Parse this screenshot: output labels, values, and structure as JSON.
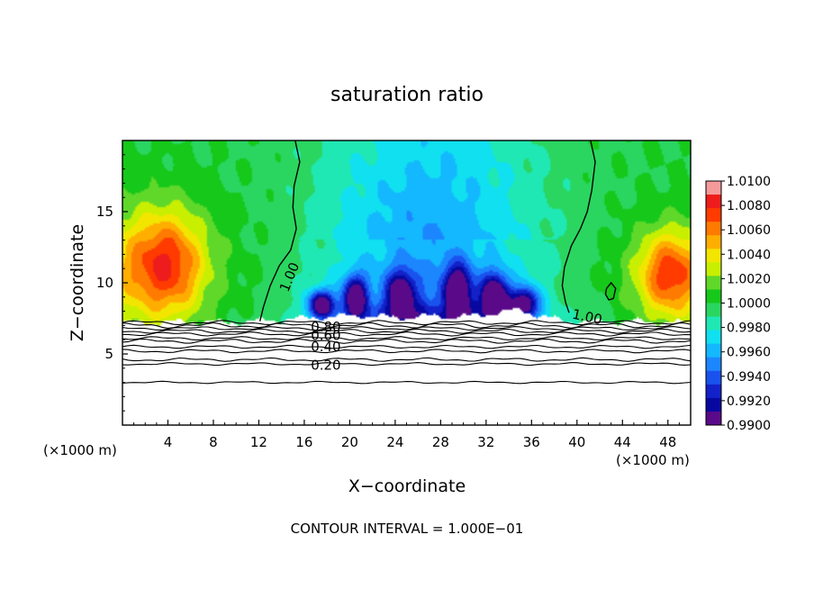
{
  "chart_data": {
    "type": "heatmap",
    "title": "saturation ratio",
    "xlabel": "X−coordinate",
    "ylabel": "Z−coordinate",
    "x_unit_left": "(×1000 m)",
    "x_unit_right": "(×1000 m)",
    "xlim": [
      0,
      50
    ],
    "ylim": [
      0,
      20
    ],
    "x_ticks": [
      4,
      8,
      12,
      16,
      20,
      24,
      28,
      32,
      36,
      40,
      44,
      48
    ],
    "y_ticks": [
      5,
      10,
      15
    ],
    "colorbar": {
      "labels": [
        "1.0100",
        "1.0080",
        "1.0060",
        "1.0040",
        "1.0020",
        "1.0000",
        "0.9980",
        "0.9960",
        "0.9940",
        "0.9920",
        "0.9900"
      ],
      "range": [
        0.99,
        1.01
      ],
      "colors": [
        "#f49a9a",
        "#ee1c1c",
        "#ff3b00",
        "#ff7a00",
        "#ffae00",
        "#f2e600",
        "#c8ef00",
        "#5fd82a",
        "#16c81a",
        "#2ad660",
        "#20e8b4",
        "#10e0f0",
        "#14b8ff",
        "#1c86ff",
        "#1a52ee",
        "#1222c8",
        "#0808a0",
        "#5a0a88"
      ]
    },
    "contour_labels": [
      {
        "text": "1.00",
        "x": 14.7,
        "z": 10.4,
        "angle": -68
      },
      {
        "text": "1.00",
        "x": 40.9,
        "z": 7.6,
        "angle": 12
      },
      {
        "text": "0.80",
        "x": 17.9,
        "z": 6.9,
        "angle": 0
      },
      {
        "text": "0.60",
        "x": 17.9,
        "z": 6.3,
        "angle": 0
      },
      {
        "text": "0.40",
        "x": 17.9,
        "z": 5.5,
        "angle": 0
      },
      {
        "text": "0.20",
        "x": 17.9,
        "z": 4.2,
        "angle": 0
      }
    ],
    "contour_lines": {
      "levels_z": [
        7.2,
        7.0,
        6.8,
        6.6,
        6.4,
        6.1,
        5.9,
        5.5,
        5.2,
        4.6,
        4.3,
        3.0
      ],
      "wobble": [
        0.1,
        0.12,
        0.08,
        0.1,
        0.09,
        0.08,
        0.1,
        0.07,
        0.08,
        0.08,
        0.06,
        0.05
      ]
    },
    "unity_contours": [
      {
        "points": [
          [
            15.2,
            20
          ],
          [
            15.6,
            18.5
          ],
          [
            15.1,
            16.8
          ],
          [
            15.0,
            15.3
          ],
          [
            15.3,
            13.8
          ],
          [
            14.8,
            12.3
          ],
          [
            13.8,
            11.2
          ],
          [
            13.0,
            9.8
          ],
          [
            12.4,
            8.3
          ],
          [
            12.1,
            7.3
          ]
        ]
      },
      {
        "points": [
          [
            41.2,
            20
          ],
          [
            41.6,
            18.5
          ],
          [
            41.3,
            16.5
          ],
          [
            40.9,
            15.0
          ],
          [
            40.3,
            13.8
          ],
          [
            39.5,
            12.6
          ],
          [
            38.9,
            11.1
          ],
          [
            38.7,
            9.8
          ],
          [
            39.0,
            8.6
          ],
          [
            39.3,
            7.9
          ]
        ]
      },
      {
        "points": [
          [
            42.6,
            9.6
          ],
          [
            43.0,
            10.0
          ],
          [
            43.4,
            9.6
          ],
          [
            43.2,
            8.9
          ],
          [
            42.8,
            8.8
          ],
          [
            42.5,
            9.2
          ],
          [
            42.6,
            9.6
          ]
        ]
      }
    ],
    "cloud_top_z": [
      [
        0,
        7.15
      ],
      [
        3,
        7.2
      ],
      [
        6,
        7.25
      ],
      [
        9,
        7.2
      ],
      [
        12,
        7.3
      ],
      [
        15,
        7.45
      ],
      [
        18,
        7.6
      ],
      [
        21,
        7.7
      ],
      [
        24,
        7.55
      ],
      [
        27,
        7.65
      ],
      [
        30,
        7.6
      ],
      [
        33,
        7.9
      ],
      [
        35,
        8.1
      ],
      [
        37,
        7.6
      ],
      [
        39,
        7.3
      ],
      [
        42,
        7.25
      ],
      [
        45,
        7.3
      ],
      [
        48,
        7.2
      ],
      [
        50,
        7.15
      ]
    ],
    "blobs": [
      {
        "x": 4.0,
        "z": 11.3,
        "rx": 3.2,
        "rz": 3.6,
        "level": 0.0055,
        "note": "left warm core"
      },
      {
        "x": 48.0,
        "z": 10.6,
        "rx": 2.6,
        "rz": 3.0,
        "level": 0.005,
        "note": "right warm core"
      },
      {
        "x": 20.5,
        "z": 9.0,
        "rx": 1.1,
        "rz": 1.5,
        "level": -0.0085
      },
      {
        "x": 24.5,
        "z": 9.2,
        "rx": 1.3,
        "rz": 1.6,
        "level": -0.0075
      },
      {
        "x": 29.5,
        "z": 9.4,
        "rx": 1.2,
        "rz": 1.8,
        "level": -0.0085
      },
      {
        "x": 32.8,
        "z": 9.0,
        "rx": 1.3,
        "rz": 1.6,
        "level": -0.0092
      },
      {
        "x": 17.5,
        "z": 8.5,
        "rx": 1.2,
        "rz": 1.0,
        "level": -0.009
      },
      {
        "x": 35.5,
        "z": 8.6,
        "rx": 1.2,
        "rz": 1.1,
        "level": -0.008
      }
    ],
    "footnote": "CONTOUR INTERVAL = 1.000E−01"
  }
}
